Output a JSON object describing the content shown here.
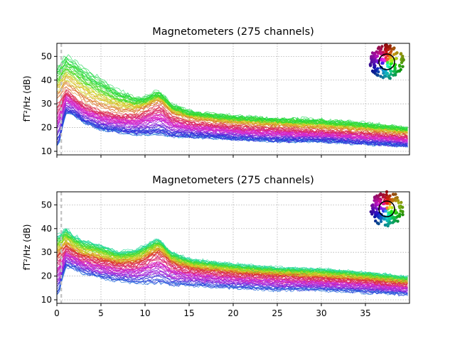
{
  "chart_data": [
    {
      "type": "line",
      "title": "Magnetometers (275 channels)",
      "xlabel": "",
      "ylabel": "fT²/Hz (dB)",
      "xlim": [
        0,
        40
      ],
      "ylim": [
        8.5,
        55.5
      ],
      "yticks": [
        10,
        20,
        30,
        40,
        50
      ],
      "xticks": [
        0,
        5,
        10,
        15,
        20,
        25,
        30,
        35
      ],
      "show_xtick_labels": false,
      "grid": true,
      "vertical_marker_x": 0.5,
      "legend": "topomap-inset-top-right",
      "n_channels": 275,
      "envelope": {
        "x": [
          0.2,
          1,
          2,
          3,
          5,
          7,
          9,
          10,
          11,
          11.5,
          12,
          13,
          15,
          20,
          25,
          30,
          35,
          40
        ],
        "upper": [
          47,
          51,
          49,
          46,
          41,
          36,
          33,
          33,
          35,
          35.5,
          34,
          30,
          27,
          25,
          24,
          23.5,
          22,
          20
        ],
        "lower": [
          12,
          26,
          25,
          22,
          19,
          18,
          17,
          17,
          17,
          17,
          17,
          16,
          16,
          15,
          14,
          14,
          13,
          12
        ],
        "mean": [
          32,
          37,
          34,
          31,
          28,
          26.5,
          26.5,
          28,
          30,
          30.5,
          30,
          26,
          23.5,
          21.5,
          20.5,
          19.5,
          18.5,
          17
        ]
      }
    },
    {
      "type": "line",
      "title": "Magnetometers (275 channels)",
      "xlabel": "",
      "ylabel": "fT²/Hz (dB)",
      "xlim": [
        0,
        40
      ],
      "ylim": [
        8.5,
        55.5
      ],
      "yticks": [
        10,
        20,
        30,
        40,
        50
      ],
      "xticks": [
        0,
        5,
        10,
        15,
        20,
        25,
        30,
        35
      ],
      "xtick_labels": [
        "0",
        "5",
        "10",
        "15",
        "20",
        "25",
        "30",
        "35"
      ],
      "show_xtick_labels": true,
      "grid": true,
      "vertical_marker_x": 0.5,
      "legend": "topomap-inset-top-right",
      "n_channels": 275,
      "envelope": {
        "x": [
          0.2,
          1,
          2,
          3,
          5,
          7,
          9,
          10,
          11,
          11.5,
          12,
          13,
          15,
          20,
          25,
          30,
          35,
          40
        ],
        "upper": [
          37,
          40,
          37,
          35,
          33,
          30,
          31,
          33,
          35,
          35.5,
          34,
          30,
          27,
          25,
          23.5,
          23,
          21.5,
          19.5
        ],
        "lower": [
          12,
          24,
          23,
          21,
          19,
          18,
          17,
          17,
          17,
          17,
          17,
          16,
          16,
          15,
          14,
          14,
          13,
          12
        ],
        "mean": [
          29,
          33,
          30.5,
          28.5,
          27,
          25.5,
          26,
          27.5,
          30,
          30.5,
          29.5,
          26,
          23.5,
          21.5,
          20.5,
          19.5,
          18.5,
          17
        ]
      }
    }
  ]
}
